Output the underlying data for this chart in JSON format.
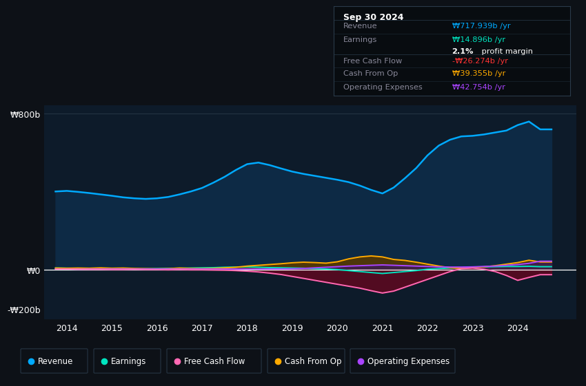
{
  "bg_color": "#0d1117",
  "plot_bg_color": "#0d1b2a",
  "revenue_color": "#00aaff",
  "revenue_fill": "#0d2a45",
  "earnings_color": "#00e5c0",
  "fcf_color": "#ff69b4",
  "cashfromop_color": "#ffaa00",
  "opex_color": "#aa44ff",
  "fcf_fill": "#5a0a20",
  "cashop_fill": "#5a3a00",
  "opex_fill": "#3a1a5a",
  "legend_items": [
    "Revenue",
    "Earnings",
    "Free Cash Flow",
    "Cash From Op",
    "Operating Expenses"
  ],
  "legend_colors": [
    "#00aaff",
    "#00e5c0",
    "#ff69b4",
    "#ffaa00",
    "#aa44ff"
  ],
  "revenue_label": "₩717.939b /yr",
  "earnings_label": "₩14.896b /yr",
  "fcf_label": "-₩26.274b /yr",
  "cashop_label": "₩39.355b /yr",
  "opex_label": "₩42.754b /yr",
  "years": [
    2013.75,
    2014.0,
    2014.25,
    2014.5,
    2014.75,
    2015.0,
    2015.25,
    2015.5,
    2015.75,
    2016.0,
    2016.25,
    2016.5,
    2016.75,
    2017.0,
    2017.25,
    2017.5,
    2017.75,
    2018.0,
    2018.25,
    2018.5,
    2018.75,
    2019.0,
    2019.25,
    2019.5,
    2019.75,
    2020.0,
    2020.25,
    2020.5,
    2020.75,
    2021.0,
    2021.25,
    2021.5,
    2021.75,
    2022.0,
    2022.25,
    2022.5,
    2022.75,
    2023.0,
    2023.25,
    2023.5,
    2023.75,
    2024.0,
    2024.25,
    2024.5,
    2024.75
  ],
  "revenue": [
    400,
    403,
    398,
    392,
    385,
    378,
    370,
    365,
    362,
    365,
    372,
    385,
    400,
    418,
    445,
    475,
    510,
    540,
    548,
    535,
    518,
    502,
    490,
    480,
    470,
    460,
    448,
    430,
    408,
    390,
    420,
    468,
    520,
    585,
    635,
    665,
    682,
    685,
    692,
    702,
    712,
    740,
    758,
    718,
    718
  ],
  "earnings": [
    8,
    7,
    6,
    5,
    6,
    5,
    4,
    3,
    4,
    5,
    6,
    7,
    8,
    9,
    10,
    12,
    13,
    14,
    12,
    10,
    9,
    8,
    7,
    5,
    3,
    0,
    -5,
    -10,
    -15,
    -20,
    -15,
    -10,
    -5,
    2,
    5,
    8,
    10,
    12,
    14,
    15,
    16,
    16,
    17,
    15,
    15
  ],
  "fcf": [
    3,
    3,
    2,
    1,
    1,
    0,
    0,
    1,
    0,
    0,
    -1,
    0,
    -1,
    -1,
    -2,
    -3,
    -5,
    -8,
    -12,
    -18,
    -25,
    -35,
    -45,
    -55,
    -65,
    -75,
    -85,
    -95,
    -108,
    -120,
    -110,
    -90,
    -70,
    -50,
    -30,
    -10,
    5,
    8,
    2,
    -10,
    -30,
    -55,
    -40,
    -26,
    -26
  ],
  "cashfromop": [
    8,
    7,
    8,
    7,
    9,
    7,
    8,
    6,
    5,
    4,
    5,
    8,
    6,
    5,
    6,
    9,
    12,
    18,
    22,
    26,
    30,
    35,
    38,
    36,
    33,
    40,
    55,
    65,
    70,
    65,
    52,
    47,
    38,
    28,
    18,
    10,
    6,
    10,
    14,
    20,
    28,
    36,
    48,
    39,
    39
  ],
  "opex": [
    3,
    3,
    2,
    3,
    3,
    3,
    3,
    3,
    3,
    3,
    3,
    3,
    3,
    3,
    3,
    3,
    3,
    3,
    3,
    3,
    3,
    4,
    6,
    9,
    12,
    15,
    18,
    20,
    22,
    24,
    22,
    20,
    18,
    16,
    14,
    13,
    13,
    14,
    16,
    18,
    22,
    26,
    32,
    43,
    43
  ],
  "ylim": [
    -255,
    840
  ],
  "yticks": [
    -200,
    0,
    800
  ],
  "ytick_labels": [
    "-₩200b",
    "₩0",
    "₩800b"
  ],
  "xlim": [
    2013.5,
    2025.3
  ],
  "xticks": [
    2014,
    2015,
    2016,
    2017,
    2018,
    2019,
    2020,
    2021,
    2022,
    2023,
    2024
  ]
}
